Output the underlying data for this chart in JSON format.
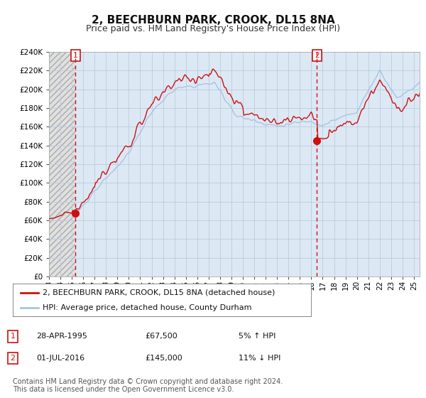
{
  "title": "2, BEECHBURN PARK, CROOK, DL15 8NA",
  "subtitle": "Price paid vs. HM Land Registry's House Price Index (HPI)",
  "ylabel_ticks": [
    "£0",
    "£20K",
    "£40K",
    "£60K",
    "£80K",
    "£100K",
    "£120K",
    "£140K",
    "£160K",
    "£180K",
    "£200K",
    "£220K",
    "£240K"
  ],
  "ylim": [
    0,
    240000
  ],
  "xlim_start": 1993.0,
  "xlim_end": 2025.5,
  "hpi_color": "#a8c4e0",
  "price_color": "#cc1111",
  "vline_color": "#cc1111",
  "chart_bg_color": "#dce9f5",
  "hatch_bg_color": "#c8c8c8",
  "sale1_date": 1995.32,
  "sale1_price": 67500,
  "sale1_label": "1",
  "sale2_date": 2016.5,
  "sale2_price": 145000,
  "sale2_label": "2",
  "legend_label1": "2, BEECHBURN PARK, CROOK, DL15 8NA (detached house)",
  "legend_label2": "HPI: Average price, detached house, County Durham",
  "table_row1": [
    "1",
    "28-APR-1995",
    "£67,500",
    "5% ↑ HPI"
  ],
  "table_row2": [
    "2",
    "01-JUL-2016",
    "£145,000",
    "11% ↓ HPI"
  ],
  "footnote": "Contains HM Land Registry data © Crown copyright and database right 2024.\nThis data is licensed under the Open Government Licence v3.0.",
  "title_fontsize": 11,
  "subtitle_fontsize": 9,
  "tick_fontsize": 7.5,
  "legend_fontsize": 8,
  "table_fontsize": 8,
  "footnote_fontsize": 7
}
